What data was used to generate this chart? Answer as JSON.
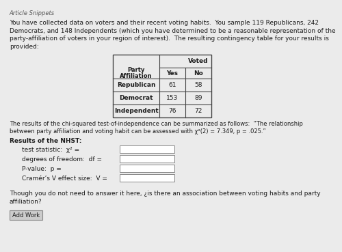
{
  "page_bg": "#ebebeb",
  "header_text": "Article Snippets",
  "paragraph1_lines": [
    "You have collected data on voters and their recent voting habits.  You sample 119 Republicans, 242",
    "Democrats, and 148 Independents (which you have determined to be a reasonable representation of the",
    "party-affiliation of voters in your region of interest).  The resulting contingency table for your results is",
    "provided:"
  ],
  "table_rows": [
    [
      "Republican",
      "61",
      "58"
    ],
    [
      "Democrat",
      "153",
      "89"
    ],
    [
      "Independent",
      "76",
      "72"
    ]
  ],
  "results_lines": [
    "The results of the chi-squared test-of-independence can be summarized as follows:  “The relationship",
    "between party affiliation and voting habit can be assessed with χ²(2) = 7.349, p = .025.”"
  ],
  "nhst_label": "Results of the NHST:",
  "fields": [
    "test statistic:  χ² =",
    "degrees of freedom:  df =",
    "P-value:  p =",
    "Cramér’s V effect size:  V ="
  ],
  "closing_lines": [
    "Though you do not need to answer it here, ¿is there an association between voting habits and party",
    "affiliation?"
  ],
  "button_text": "Add Work",
  "text_color": "#1a1a1a",
  "input_box_color": "#ffffff",
  "input_box_border": "#888888",
  "button_bg": "#cccccc",
  "button_border": "#888888",
  "table_border_color": "#444444"
}
